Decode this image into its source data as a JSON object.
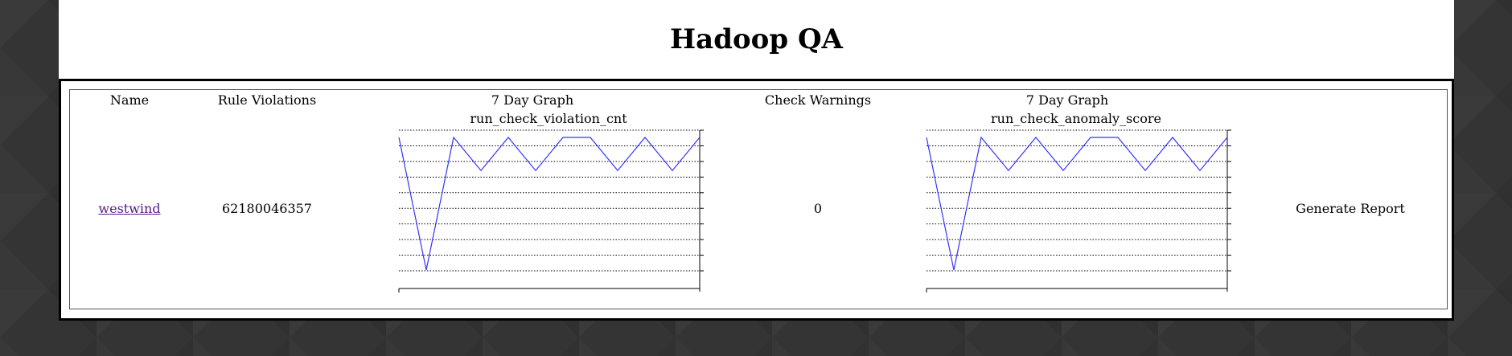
{
  "header": {
    "title": "Hadoop QA"
  },
  "table": {
    "columns": [
      "Name",
      "Rule Violations",
      "7 Day Graph",
      "Check Warnings",
      "7 Day Graph"
    ],
    "row": {
      "name": "westwind",
      "rule_violations": "62180046357",
      "check_warnings": "0",
      "action": "Generate Report"
    }
  },
  "graphs": [
    {
      "title": "run_check_violation_cnt",
      "values": [
        8,
        0,
        8,
        6,
        8,
        6,
        8,
        8,
        6,
        8,
        6,
        8
      ],
      "ylim": [
        0,
        8.5
      ],
      "line_color": "#3333ff"
    },
    {
      "title": "run_check_anomaly_score",
      "values": [
        8,
        0,
        8,
        6,
        8,
        6,
        8,
        8,
        6,
        8,
        6,
        8
      ],
      "ylim": [
        0,
        8.5
      ],
      "line_color": "#3333ff"
    }
  ]
}
